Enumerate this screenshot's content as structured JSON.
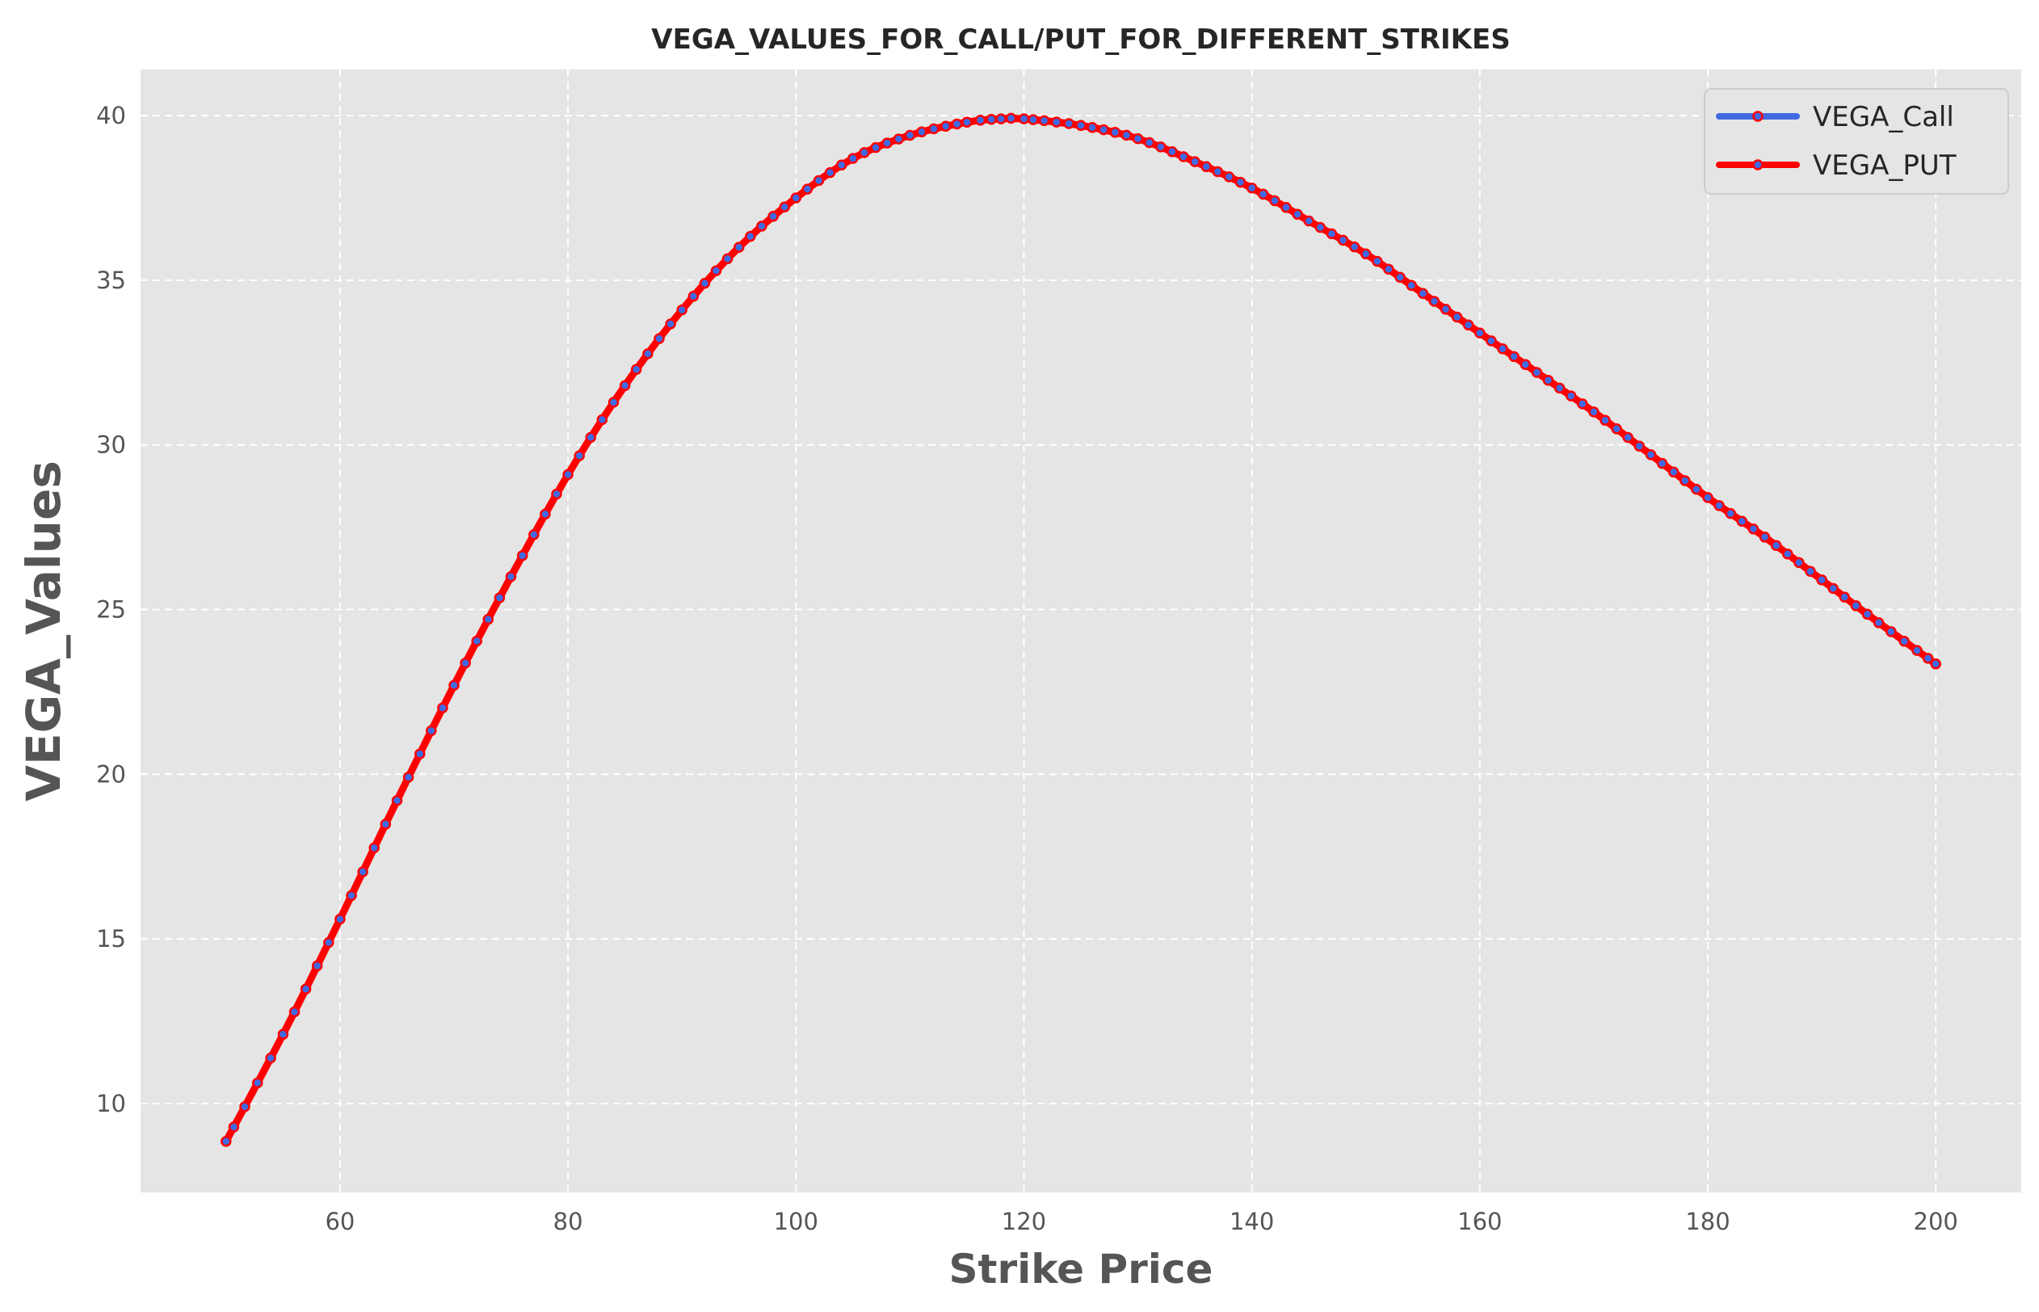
{
  "chart_data": {
    "type": "line",
    "title": "VEGA_VALUES_FOR_CALL/PUT_FOR_DIFFERENT_STRIKES",
    "xlabel": "Strike Price",
    "ylabel": "VEGA_Values",
    "xlim": [
      42.5,
      207.5
    ],
    "ylim": [
      7.3,
      41.4
    ],
    "xticks": [
      60,
      80,
      100,
      120,
      140,
      160,
      180,
      200
    ],
    "yticks": [
      10,
      15,
      20,
      25,
      30,
      35,
      40
    ],
    "xtick_labels": [
      "60",
      "80",
      "100",
      "120",
      "140",
      "160",
      "180",
      "200"
    ],
    "ytick_labels": [
      "10",
      "15",
      "20",
      "25",
      "30",
      "35",
      "40"
    ],
    "grid": true,
    "legend_position": "top-right",
    "x": [
      50,
      55,
      60,
      65,
      70,
      75,
      80,
      85,
      90,
      95,
      100,
      105,
      110,
      115,
      118,
      120,
      125,
      130,
      135,
      140,
      145,
      150,
      155,
      160,
      165,
      170,
      175,
      180,
      185,
      190,
      195,
      200
    ],
    "series": [
      {
        "name": "VEGA_Call",
        "color": "#4169e1",
        "values": [
          8.85,
          12.1,
          15.6,
          19.2,
          22.7,
          26.0,
          29.1,
          31.8,
          34.1,
          36.0,
          37.5,
          38.7,
          39.4,
          39.8,
          39.9,
          39.9,
          39.7,
          39.3,
          38.6,
          37.8,
          36.8,
          35.8,
          34.6,
          33.4,
          32.2,
          31.0,
          29.7,
          28.4,
          27.2,
          25.9,
          24.6,
          23.35
        ]
      },
      {
        "name": "VEGA_PUT",
        "color": "#ff0000",
        "values": [
          8.85,
          12.1,
          15.6,
          19.2,
          22.7,
          26.0,
          29.1,
          31.8,
          34.1,
          36.0,
          37.5,
          38.7,
          39.4,
          39.8,
          39.9,
          39.9,
          39.7,
          39.3,
          38.6,
          37.8,
          36.8,
          35.8,
          34.6,
          33.4,
          32.2,
          31.0,
          29.7,
          28.4,
          27.2,
          25.9,
          24.6,
          23.35
        ]
      }
    ]
  }
}
